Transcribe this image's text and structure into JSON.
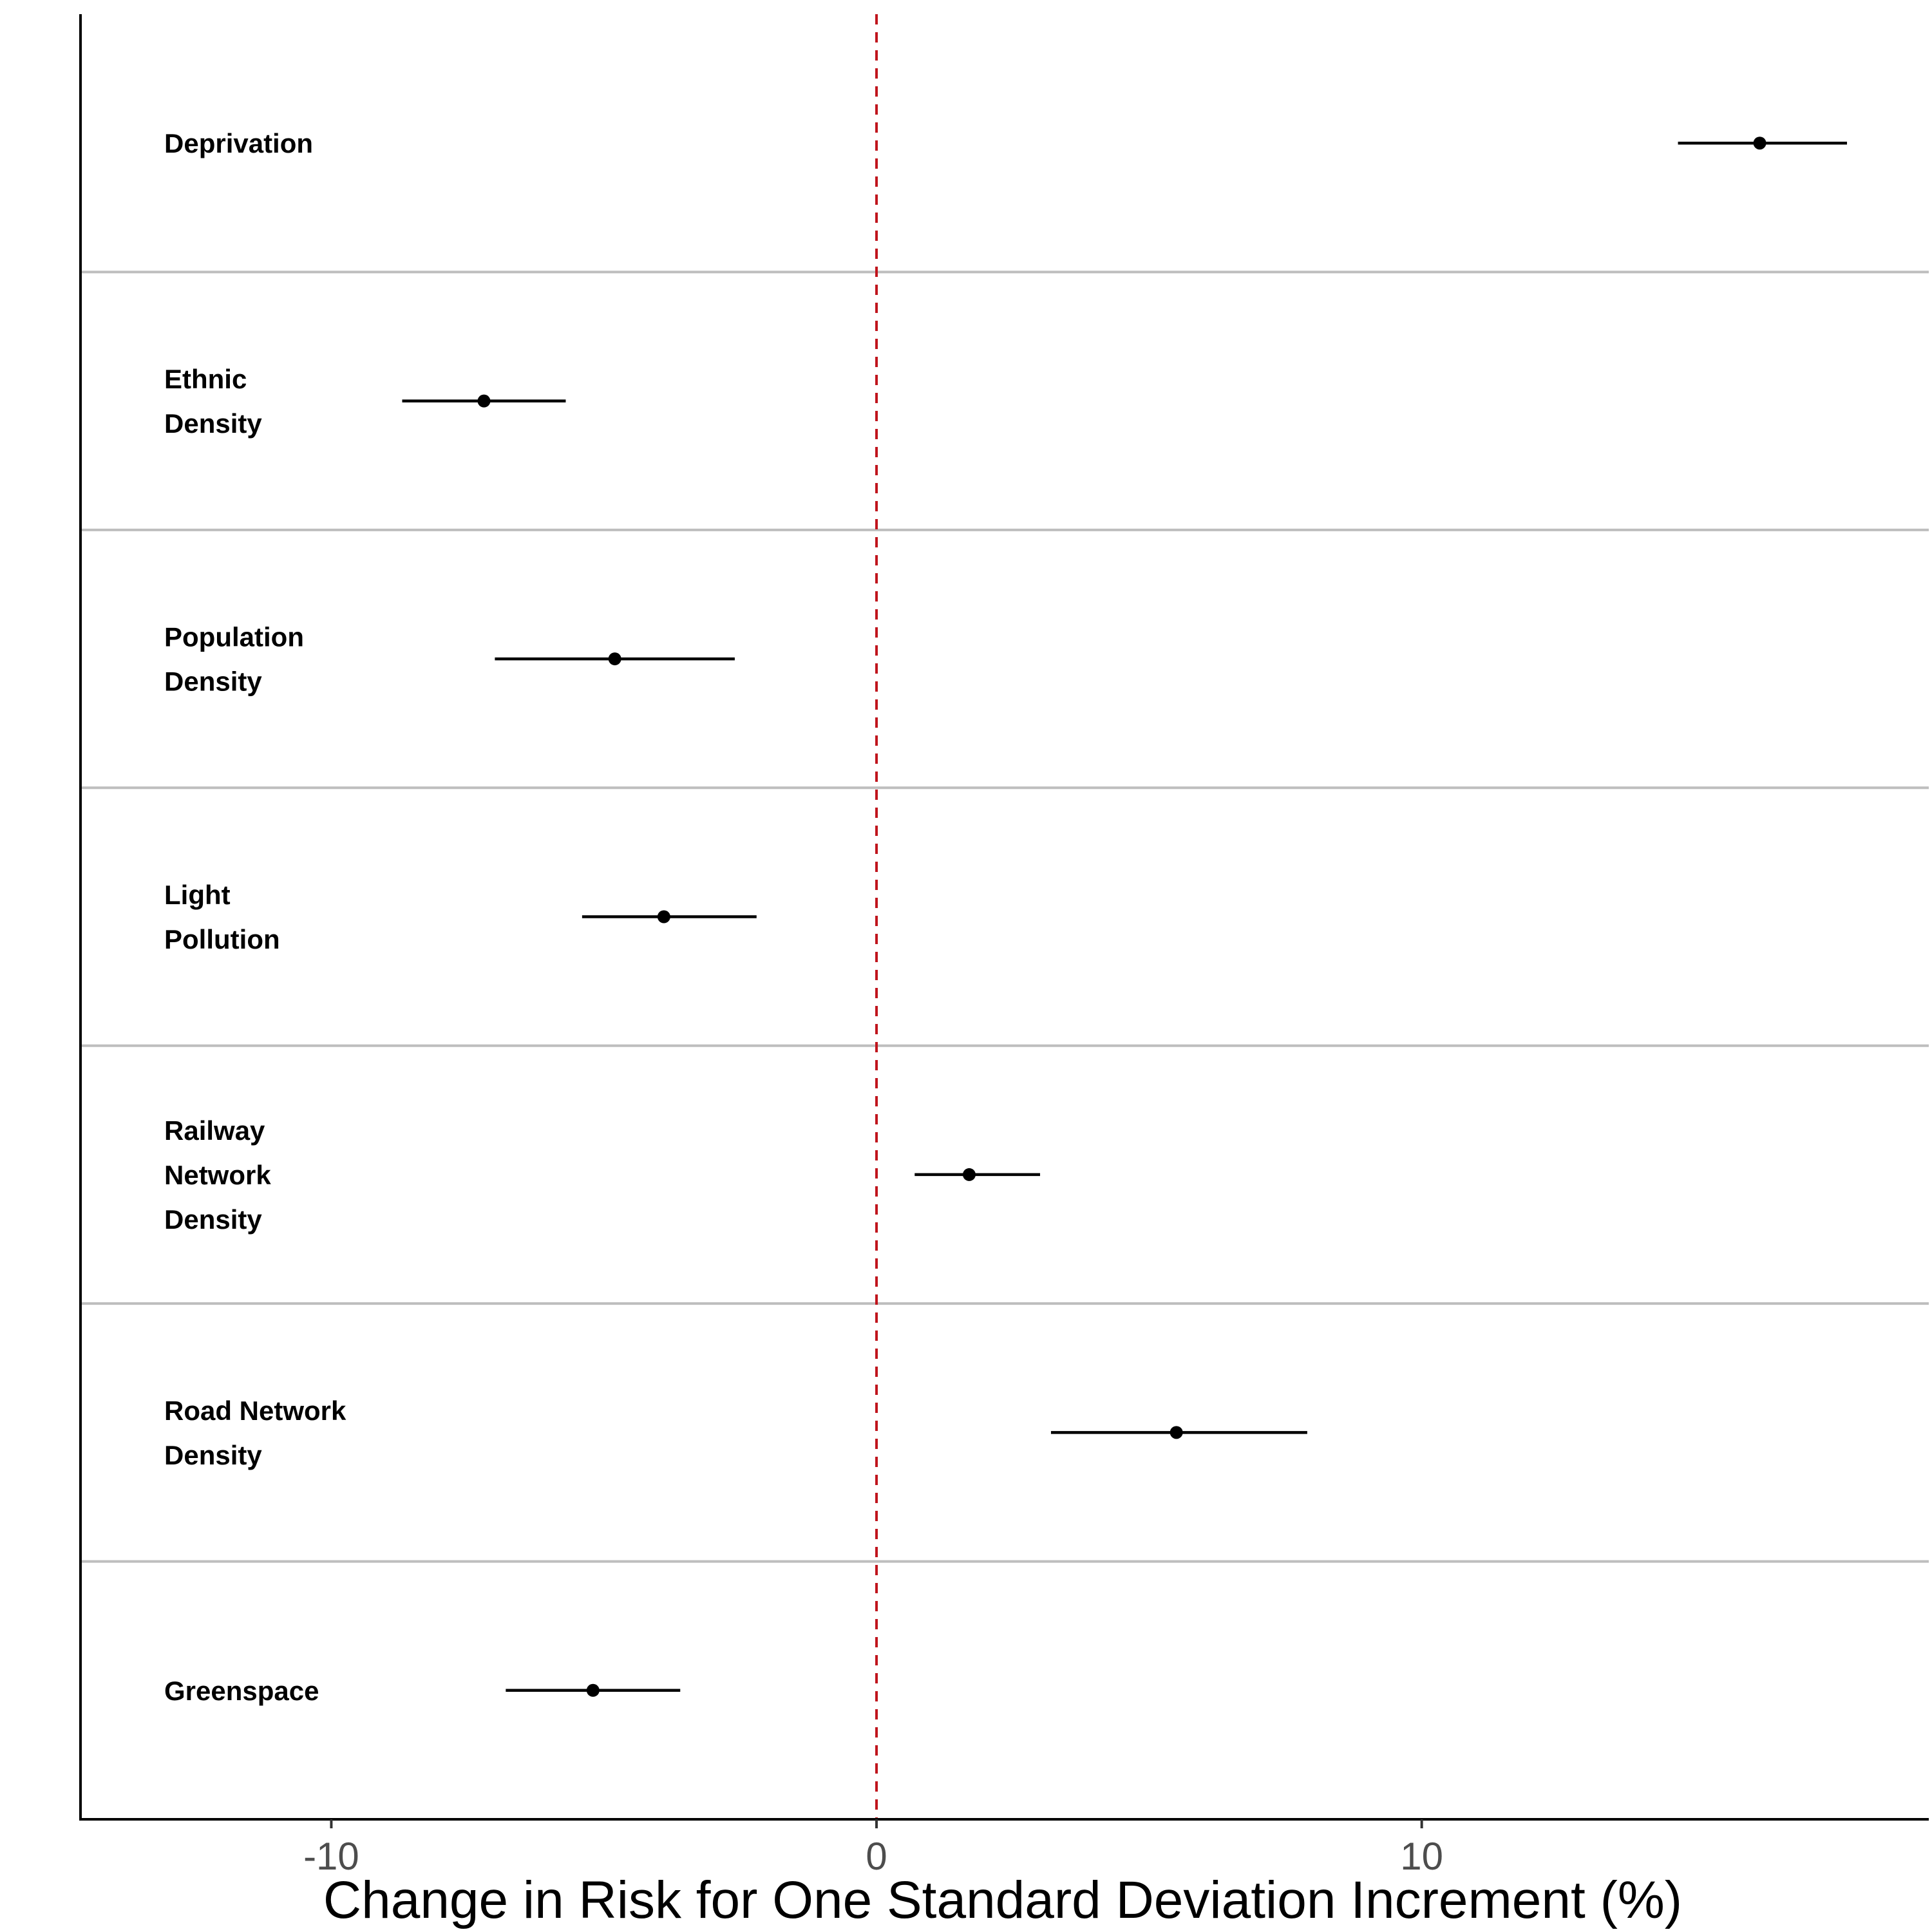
{
  "chart_data": {
    "type": "forest",
    "xlabel": "Change in Risk for One Standard Deviation Increment (%)",
    "xlim": [
      -14.6,
      19.3
    ],
    "xticks": [
      -10,
      0,
      10
    ],
    "xtick_labels": [
      "-10",
      "0",
      "10"
    ],
    "reference_line": {
      "x": 0,
      "style": "dashed",
      "color": "#c0141c"
    },
    "colors": {
      "points": "#000000",
      "separators": "#bebebe",
      "axis": "#000000"
    },
    "grid": false,
    "rows": [
      {
        "label_lines": [
          "Deprivation"
        ],
        "estimate": 16.2,
        "lower": 14.7,
        "upper": 17.8
      },
      {
        "label_lines": [
          "Ethnic",
          "Density"
        ],
        "estimate": -7.2,
        "lower": -8.7,
        "upper": -5.7
      },
      {
        "label_lines": [
          "Population",
          "Density"
        ],
        "estimate": -4.8,
        "lower": -7.0,
        "upper": -2.6
      },
      {
        "label_lines": [
          "Light",
          "Pollution"
        ],
        "estimate": -3.9,
        "lower": -5.4,
        "upper": -2.2
      },
      {
        "label_lines": [
          "Railway",
          "Network",
          "Density"
        ],
        "estimate": 1.7,
        "lower": 0.7,
        "upper": 3.0
      },
      {
        "label_lines": [
          "Road Network",
          "Density"
        ],
        "estimate": 5.5,
        "lower": 3.2,
        "upper": 7.9
      },
      {
        "label_lines": [
          "Greenspace"
        ],
        "estimate": -5.2,
        "lower": -6.8,
        "upper": -3.6
      }
    ]
  }
}
